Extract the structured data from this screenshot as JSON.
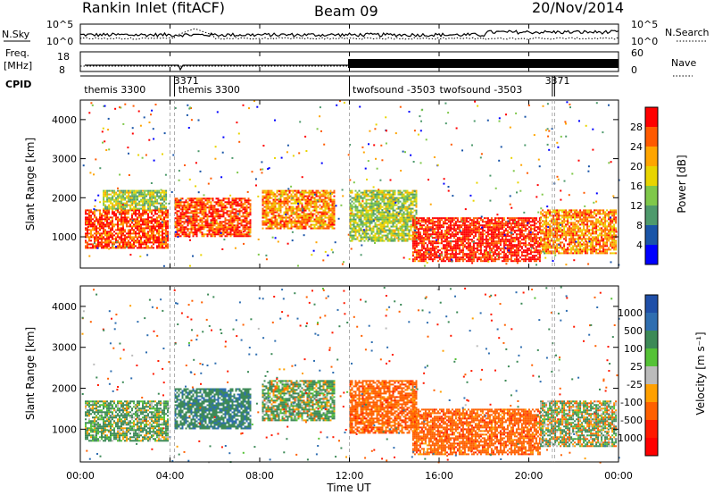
{
  "header": {
    "station": "Rankin Inlet (fitACF)",
    "beam": "Beam 09",
    "date": "20/Nov/2014"
  },
  "nsky_panel": {
    "left_label": "N.Sky",
    "right_label": "N.Search",
    "left_ticks": [
      "10^5",
      "10^0"
    ],
    "right_ticks": [
      "10^5",
      "10^0"
    ]
  },
  "freq_panel": {
    "left_label_line1": "Freq.",
    "left_label_line2": "[MHz]",
    "right_label": "Nave",
    "left_ticks": [
      "18",
      "8"
    ],
    "right_ticks": [
      "60",
      "0"
    ]
  },
  "cpid_panel": {
    "label": "CPID",
    "entries": [
      {
        "text": "themis 3300",
        "hour": 0.05
      },
      {
        "text": "3371",
        "hour": 4.05
      },
      {
        "text": "themis 3300",
        "hour": 4.25
      },
      {
        "text": "twofsound -3503",
        "hour": 12.02
      },
      {
        "text": "twofsound -3503",
        "hour": 15.9
      },
      {
        "text": "3371",
        "hour": 20.6
      }
    ],
    "dividers_hours": [
      4.0,
      4.2,
      12.0,
      21.05,
      21.15
    ]
  },
  "x_axis": {
    "label": "Time UT",
    "ticks": [
      "00:00",
      "04:00",
      "08:00",
      "12:00",
      "16:00",
      "20:00",
      "00:00"
    ],
    "range_hours": [
      0,
      24
    ]
  },
  "power_panel": {
    "ylabel": "Slant Range [km]",
    "yticks": [
      "4000",
      "3000",
      "2000",
      "1000"
    ],
    "colorbar_label": "Power [dB]",
    "colorbar_ticks": [
      "28",
      "24",
      "20",
      "16",
      "12",
      "8",
      "4"
    ],
    "colorbar_colors": [
      "#ff0000",
      "#ff5a00",
      "#ffa500",
      "#e8d400",
      "#7fc84a",
      "#4e9a6c",
      "#1a55a8",
      "#0000ff"
    ]
  },
  "velocity_panel": {
    "ylabel": "Slant Range [km]",
    "yticks": [
      "4000",
      "3000",
      "2000",
      "1000"
    ],
    "colorbar_label": "Velocity [m s⁻¹]",
    "colorbar_ticks": [
      "1000",
      "500",
      "100",
      "25",
      "-25",
      "-100",
      "-500",
      "-1000"
    ],
    "colorbar_colors": [
      "#1f4fa8",
      "#2f6eb0",
      "#3d8a57",
      "#55c236",
      "#bbbbbb",
      "#ffa000",
      "#ff6000",
      "#ff1a00",
      "#ff0000"
    ]
  },
  "chart_data": [
    {
      "type": "heatmap",
      "title": "Power",
      "xlabel": "Time UT",
      "ylabel": "Slant Range [km]",
      "xlim_hours": [
        0,
        24
      ],
      "ylim": [
        200,
        4500
      ],
      "colorbar": {
        "label": "Power [dB]",
        "range": [
          0,
          30
        ]
      },
      "regions": [
        {
          "t0": 0.2,
          "t1": 3.9,
          "r0": 700,
          "r1": 1700,
          "value": 26
        },
        {
          "t0": 1.0,
          "t1": 3.8,
          "r0": 1700,
          "r1": 2200,
          "value": 14
        },
        {
          "t0": 4.2,
          "t1": 7.6,
          "r0": 1000,
          "r1": 2000,
          "value": 26
        },
        {
          "t0": 8.1,
          "t1": 11.3,
          "r0": 1200,
          "r1": 2200,
          "value": 22
        },
        {
          "t0": 12.0,
          "t1": 15.0,
          "r0": 900,
          "r1": 2200,
          "value": 14
        },
        {
          "t0": 14.8,
          "t1": 20.5,
          "r0": 400,
          "r1": 1500,
          "value": 28
        },
        {
          "t0": 20.5,
          "t1": 23.9,
          "r0": 600,
          "r1": 1700,
          "value": 22
        }
      ]
    },
    {
      "type": "heatmap",
      "title": "Velocity",
      "xlabel": "Time UT",
      "ylabel": "Slant Range [km]",
      "xlim_hours": [
        0,
        24
      ],
      "ylim": [
        200,
        4500
      ],
      "colorbar": {
        "label": "Velocity [m s⁻¹]",
        "range": [
          -1000,
          1000
        ]
      },
      "regions": [
        {
          "t0": 0.2,
          "t1": 3.9,
          "r0": 700,
          "r1": 1700,
          "value": 150
        },
        {
          "t0": 4.2,
          "t1": 7.6,
          "r0": 1000,
          "r1": 2000,
          "value": 400
        },
        {
          "t0": 8.1,
          "t1": 11.3,
          "r0": 1200,
          "r1": 2200,
          "value": 120
        },
        {
          "t0": 12.0,
          "t1": 15.0,
          "r0": 900,
          "r1": 2200,
          "value": -300
        },
        {
          "t0": 14.8,
          "t1": 20.5,
          "r0": 400,
          "r1": 1500,
          "value": -300
        },
        {
          "t0": 20.5,
          "t1": 23.9,
          "r0": 600,
          "r1": 1700,
          "value": 60
        }
      ]
    }
  ]
}
